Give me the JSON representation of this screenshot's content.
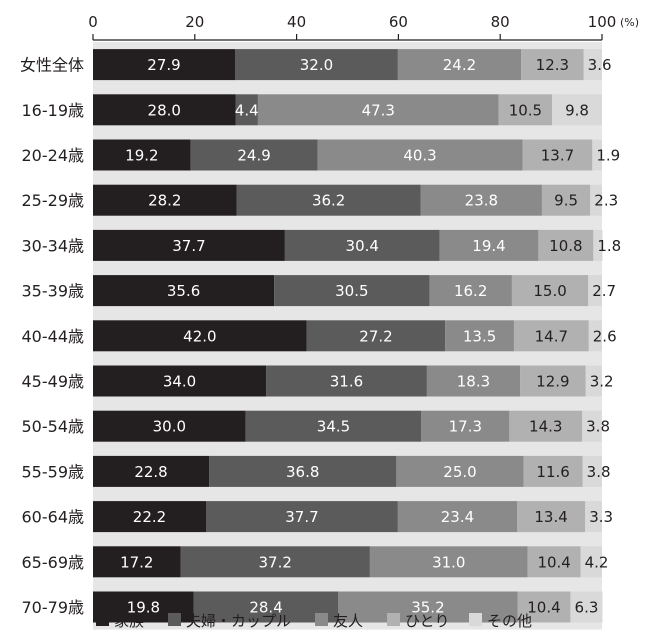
{
  "chart_data": {
    "type": "bar",
    "orientation": "horizontal",
    "stacked": true,
    "xlim": [
      0,
      100
    ],
    "x_ticks": [
      "0",
      "20",
      "40",
      "60",
      "80",
      "100"
    ],
    "unit_label": "(%)",
    "grid": false,
    "legend_position": "bottom",
    "categories": [
      "女性全体",
      "16-19歳",
      "20-24歳",
      "25-29歳",
      "30-34歳",
      "35-39歳",
      "40-44歳",
      "45-49歳",
      "50-54歳",
      "55-59歳",
      "60-64歳",
      "65-69歳",
      "70-79歳"
    ],
    "series": [
      {
        "name": "家族",
        "color": "#231f20",
        "label_color": "#ffffff",
        "values": [
          27.9,
          28.0,
          19.2,
          28.2,
          37.7,
          35.6,
          42.0,
          34.0,
          30.0,
          22.8,
          22.2,
          17.2,
          19.8
        ],
        "labels": [
          "27.9",
          "28.0",
          "19.2",
          "28.2",
          "37.7",
          "35.6",
          "42.0",
          "34.0",
          "30.0",
          "22.8",
          "22.2",
          "17.2",
          "19.8"
        ]
      },
      {
        "name": "夫婦・カップル",
        "color": "#5b5b5b",
        "label_color": "#ffffff",
        "values": [
          32.0,
          4.4,
          24.9,
          36.2,
          30.4,
          30.5,
          27.2,
          31.6,
          34.5,
          36.8,
          37.7,
          37.2,
          28.4
        ],
        "labels": [
          "32.0",
          "4.4",
          "24.9",
          "36.2",
          "30.4",
          "30.5",
          "27.2",
          "31.6",
          "34.5",
          "36.8",
          "37.7",
          "37.2",
          "28.4"
        ]
      },
      {
        "name": "友人",
        "color": "#8a8a8a",
        "label_color": "#ffffff",
        "values": [
          24.2,
          47.3,
          40.3,
          23.8,
          19.4,
          16.2,
          13.5,
          18.3,
          17.3,
          25.0,
          23.4,
          31.0,
          35.2
        ],
        "labels": [
          "24.2",
          "47.3",
          "40.3",
          "23.8",
          "19.4",
          "16.2",
          "13.5",
          "18.3",
          "17.3",
          "25.0",
          "23.4",
          "31.0",
          "35.2"
        ]
      },
      {
        "name": "ひとり",
        "color": "#b1b1b1",
        "label_color": "#231f20",
        "values": [
          12.3,
          10.5,
          13.7,
          9.5,
          10.8,
          15.0,
          14.7,
          12.9,
          14.3,
          11.6,
          13.4,
          10.4,
          10.4
        ],
        "labels": [
          "12.3",
          "10.5",
          "13.7",
          "9.5",
          "10.8",
          "15.0",
          "14.7",
          "12.9",
          "14.3",
          "11.6",
          "13.4",
          "10.4",
          "10.4"
        ]
      },
      {
        "name": "その他",
        "color": "#d9d9d9",
        "label_color": "#231f20",
        "values": [
          3.6,
          9.8,
          1.9,
          2.3,
          1.8,
          2.7,
          2.6,
          3.2,
          3.8,
          3.8,
          3.3,
          4.2,
          6.3
        ],
        "labels": [
          "3.6",
          "9.8",
          "1.9",
          "2.3",
          "1.8",
          "2.7",
          "2.6",
          "3.2",
          "3.8",
          "3.8",
          "3.3",
          "4.2",
          "6.3"
        ]
      }
    ]
  }
}
